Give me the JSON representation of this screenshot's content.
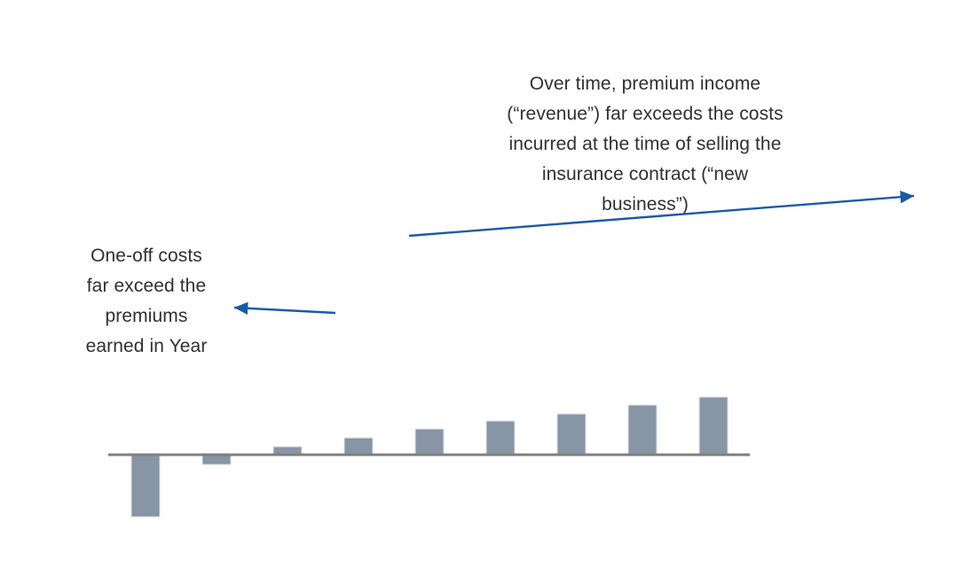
{
  "canvas": {
    "background": "#ffffff"
  },
  "annotations": {
    "premium_income": {
      "lines": [
        "Over time, premium income",
        "(“revenue”) far exceeds the costs",
        "incurred at the time of selling the",
        "insurance contract (“new business”)"
      ]
    },
    "one_off_costs": {
      "lines": [
        "One-off costs",
        "far exceed the",
        "premiums",
        "earned in Year"
      ]
    }
  },
  "colors": {
    "arrow": "#1a5ba7",
    "text": "#303030",
    "bar_fill": "#8895a5",
    "bar_border": "#d9dee6",
    "axis": "#7f7f7f",
    "background": "#ffffff"
  },
  "chart_data": {
    "type": "bar",
    "title": "",
    "xlabel": "",
    "ylabel": "",
    "x": [
      1,
      2,
      3,
      4,
      5,
      6,
      7,
      8,
      9
    ],
    "values": [
      -70,
      -11,
      9,
      19,
      29,
      38,
      46,
      56,
      65
    ],
    "ylim": [
      -85,
      80
    ],
    "grid": false,
    "legend": false,
    "axis_tick_labels_visible": false,
    "bar_color": "#8895a5",
    "baseline_color": "#7f7f7f"
  }
}
